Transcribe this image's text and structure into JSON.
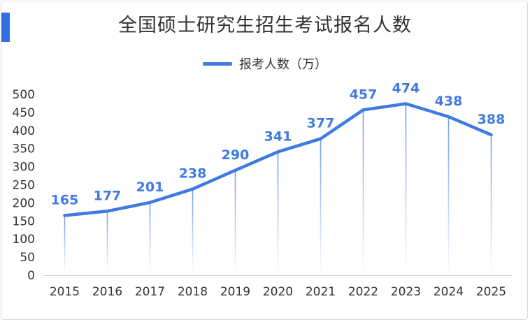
{
  "chart_data": {
    "type": "line",
    "title": "全国硕士研究生招生考试报名人数",
    "categories": [
      "2015",
      "2016",
      "2017",
      "2018",
      "2019",
      "2020",
      "2021",
      "2022",
      "2023",
      "2024",
      "2025"
    ],
    "series": [
      {
        "name": "报考人数（万）",
        "values": [
          165,
          177,
          201,
          238,
          290,
          341,
          377,
          457,
          474,
          438,
          388
        ]
      }
    ],
    "ylim": [
      0,
      500
    ],
    "yticks": [
      0,
      50,
      100,
      150,
      200,
      250,
      300,
      350,
      400,
      450,
      500
    ],
    "grid": false,
    "data_labels": true,
    "legend": "top-center",
    "line_color": "#3f7be0",
    "label_color": "#3f7be0",
    "accent_color": "#2f6fe3"
  }
}
